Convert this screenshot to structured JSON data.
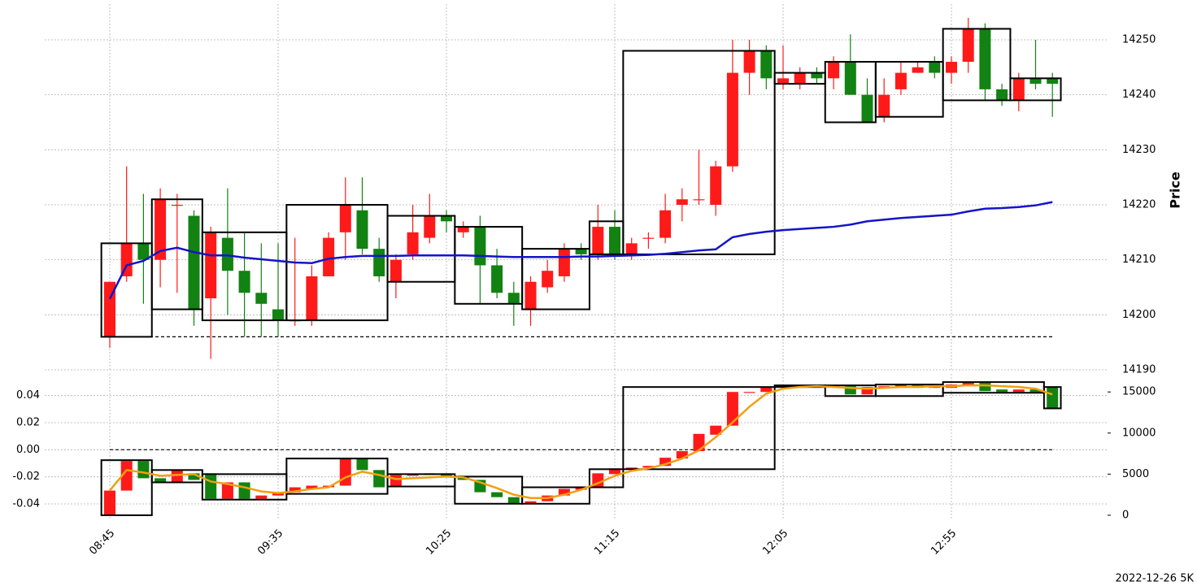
{
  "chart_data": [
    {
      "type": "candlestick",
      "ylabel": "Price",
      "ylim": [
        14190,
        14256.5
      ],
      "yticks": [
        14190,
        14200,
        14210,
        14220,
        14230,
        14240,
        14250
      ],
      "grid": true,
      "up_color": "#ff1a1a",
      "down_color": "#128212",
      "open": [
        14196,
        14207,
        14213,
        14210,
        14220,
        14218,
        14203,
        14214,
        14208,
        14204,
        14201,
        14199,
        14199,
        14207,
        14215,
        14219,
        14212,
        14206,
        14211,
        14214,
        14218,
        14215,
        14216,
        14209,
        14204,
        14201,
        14205,
        14207,
        14212,
        14211,
        14216,
        14211,
        14214,
        14214,
        14220,
        14221,
        14220,
        14227,
        14244,
        14248,
        14242,
        14242,
        14244,
        14243,
        14246,
        14240,
        14236,
        14241,
        14244,
        14246,
        14244,
        14246,
        14252,
        14241,
        14239,
        14243,
        14243
      ],
      "high": [
        14206,
        14227,
        14222,
        14223,
        14222,
        14219,
        14216,
        14223,
        14215,
        14213,
        14213,
        14214,
        14209,
        14215,
        14225,
        14225,
        14214,
        14211,
        14220,
        14222,
        14219,
        14217,
        14218,
        14212,
        14206,
        14207,
        14210,
        14213,
        14213,
        14220,
        14219,
        14214,
        14215,
        14222,
        14223,
        14230,
        14228,
        14250,
        14250,
        14249,
        14249,
        14245,
        14245,
        14247,
        14251,
        14243,
        14243,
        14246,
        14246,
        14247,
        14247,
        14254,
        14253,
        14242,
        14244,
        14250,
        14244
      ],
      "low": [
        14194,
        14206,
        14202,
        14205,
        14204,
        14198,
        14192,
        14200,
        14196,
        14196,
        14196,
        14198,
        14198,
        14207,
        14210,
        14211,
        14206,
        14203,
        14210,
        14213,
        14215,
        14214,
        14202,
        14203,
        14198,
        14198,
        14204,
        14206,
        14210,
        14210,
        14210,
        14210,
        14212,
        14213,
        14217,
        14220,
        14218,
        14226,
        14240,
        14241,
        14241,
        14241,
        14242,
        14241,
        14240,
        14235,
        14235,
        14240,
        14244,
        14243,
        14242,
        14244,
        14239,
        14238,
        14237,
        14241,
        14236
      ],
      "close": [
        14206,
        14213,
        14210,
        14221,
        14220,
        14201,
        14215,
        14208,
        14204,
        14202,
        14199,
        14199,
        14207,
        14214,
        14220,
        14212,
        14207,
        14210,
        14215,
        14218,
        14217,
        14216,
        14209,
        14204,
        14202,
        14206,
        14208,
        14212,
        14211,
        14216,
        14211,
        14213,
        14214,
        14219,
        14221,
        14221,
        14227,
        14244,
        14248,
        14243,
        14243,
        14244,
        14243,
        14246,
        14240,
        14235,
        14240,
        14244,
        14245,
        14244,
        14246,
        14252,
        14241,
        14239,
        14243,
        14242,
        14242
      ],
      "line": {
        "color": "#1414c8",
        "values": [
          14202.9,
          14209,
          14209.8,
          14211.6,
          14212.2,
          14211.4,
          14210.8,
          14210.8,
          14210.4,
          14210.1,
          14209.8,
          14209.5,
          14209.4,
          14210.2,
          14210.5,
          14210.7,
          14210.7,
          14210.7,
          14210.8,
          14210.8,
          14210.8,
          14210.8,
          14210.7,
          14210.6,
          14210.5,
          14210.5,
          14210.5,
          14210.5,
          14210.6,
          14210.6,
          14210.7,
          14210.8,
          14210.9,
          14211.1,
          14211.4,
          14211.7,
          14211.9,
          14214.1,
          14214.7,
          14215.1,
          14215.4,
          14215.6,
          14215.8,
          14216,
          14216.4,
          14217,
          14217.3,
          14217.6,
          14217.8,
          14218,
          14218.2,
          14218.8,
          14219.3,
          14219.4,
          14219.6,
          14219.9,
          14220.5
        ]
      },
      "boxes": [
        {
          "start": 0,
          "end": 2,
          "low": 14196,
          "high": 14213
        },
        {
          "start": 3,
          "end": 5,
          "low": 14201,
          "high": 14221
        },
        {
          "start": 6,
          "end": 10,
          "low": 14199,
          "high": 14215
        },
        {
          "start": 11,
          "end": 16,
          "low": 14199,
          "high": 14220
        },
        {
          "start": 17,
          "end": 20,
          "low": 14206,
          "high": 14218
        },
        {
          "start": 21,
          "end": 24,
          "low": 14202,
          "high": 14216
        },
        {
          "start": 25,
          "end": 28,
          "low": 14201,
          "high": 14212
        },
        {
          "start": 29,
          "end": 30,
          "low": 14211,
          "high": 14217
        },
        {
          "start": 31,
          "end": 39,
          "low": 14211,
          "high": 14248
        },
        {
          "start": 40,
          "end": 42,
          "low": 14242,
          "high": 14244
        },
        {
          "start": 43,
          "end": 45,
          "low": 14235,
          "high": 14246
        },
        {
          "start": 46,
          "end": 49,
          "low": 14236,
          "high": 14246
        },
        {
          "start": 50,
          "end": 53,
          "low": 14239,
          "high": 14252
        },
        {
          "start": 54,
          "end": 56,
          "low": 14239,
          "high": 14243
        }
      ],
      "hline": 14196
    },
    {
      "type": "candlestick",
      "categories": [
        "08:45",
        null,
        null,
        null,
        null,
        null,
        null,
        null,
        null,
        null,
        "09:35",
        null,
        null,
        null,
        null,
        null,
        null,
        null,
        null,
        null,
        "10:25",
        null,
        null,
        null,
        null,
        null,
        null,
        null,
        null,
        null,
        "11:15",
        null,
        null,
        null,
        null,
        null,
        null,
        null,
        null,
        null,
        "12:05",
        null,
        null,
        null,
        null,
        null,
        null,
        null,
        null,
        null,
        "12:55",
        null,
        null,
        null,
        null,
        null,
        null
      ],
      "ylim": [
        -0.052,
        0.056
      ],
      "yticks": [
        -0.04,
        -0.02,
        {
          "value": 0,
          "label": "0.00"
        },
        0.02,
        0.04
      ],
      "y2lim": [
        -600,
        17200
      ],
      "y2ticks": [
        0,
        5000,
        10000,
        15000
      ],
      "grid": true,
      "up_color": "#ff1a1a",
      "down_color": "#128212",
      "open": [
        100,
        3000,
        6600,
        4500,
        4000,
        5100,
        5100,
        2000,
        4000,
        2000,
        2400,
        2800,
        3200,
        3400,
        3600,
        6900,
        5500,
        3600,
        4800,
        4900,
        5100,
        4600,
        4300,
        2800,
        2200,
        1400,
        1700,
        2400,
        3100,
        3400,
        5000,
        5600,
        5800,
        6000,
        6900,
        7800,
        9800,
        10900,
        15000,
        15000,
        15600,
        15600,
        15700,
        15600,
        15800,
        14700,
        15500,
        15600,
        15800,
        15500,
        15500,
        15700,
        16100,
        15300,
        15000,
        15300,
        15600
      ],
      "close": [
        3000,
        6600,
        4500,
        4000,
        5500,
        4300,
        2000,
        4000,
        2000,
        2400,
        2800,
        3400,
        3600,
        3600,
        6900,
        5500,
        3400,
        4900,
        5000,
        5100,
        4800,
        4300,
        2800,
        2200,
        1400,
        1700,
        2400,
        3200,
        3500,
        5100,
        5700,
        5800,
        6000,
        7000,
        7800,
        9900,
        10900,
        15000,
        15000,
        15600,
        15700,
        15700,
        15600,
        15800,
        14700,
        15600,
        15700,
        15900,
        15500,
        15700,
        15900,
        16200,
        15100,
        15000,
        15300,
        15000,
        13000
      ],
      "line": {
        "color": "#f0a010",
        "values": [
          3000,
          5500,
          5200,
          4800,
          4900,
          5000,
          4100,
          3800,
          3400,
          2900,
          2700,
          2900,
          3200,
          3400,
          4600,
          5300,
          4900,
          4400,
          4500,
          4600,
          4700,
          4600,
          4000,
          3300,
          2500,
          2100,
          2100,
          2500,
          3100,
          3900,
          4800,
          5400,
          5700,
          6200,
          6900,
          7900,
          9500,
          11300,
          13200,
          14800,
          15400,
          15600,
          15700,
          15600,
          15500,
          15400,
          15500,
          15600,
          15600,
          15700,
          15700,
          15800,
          15800,
          15700,
          15600,
          15400,
          14700
        ]
      },
      "boxes": [
        {
          "start": 0,
          "end": 2,
          "low": 0,
          "high": 6700
        },
        {
          "start": 3,
          "end": 5,
          "low": 4000,
          "high": 5500
        },
        {
          "start": 6,
          "end": 10,
          "low": 1900,
          "high": 5000
        },
        {
          "start": 11,
          "end": 16,
          "low": 2600,
          "high": 6900
        },
        {
          "start": 17,
          "end": 20,
          "low": 3500,
          "high": 5000
        },
        {
          "start": 21,
          "end": 24,
          "low": 1400,
          "high": 4700
        },
        {
          "start": 25,
          "end": 28,
          "low": 1400,
          "high": 3400
        },
        {
          "start": 29,
          "end": 30,
          "low": 3400,
          "high": 5600
        },
        {
          "start": 31,
          "end": 39,
          "low": 5600,
          "high": 15600
        },
        {
          "start": 40,
          "end": 42,
          "low": 15600,
          "high": 15800
        },
        {
          "start": 43,
          "end": 45,
          "low": 14500,
          "high": 15800
        },
        {
          "start": 46,
          "end": 49,
          "low": 14500,
          "high": 15900
        },
        {
          "start": 50,
          "end": 55,
          "low": 14900,
          "high": 16200
        },
        {
          "start": 56,
          "end": 56,
          "low": 13000,
          "high": 15600
        }
      ],
      "hline": 0,
      "caption": "2022-12-26 5K"
    }
  ]
}
